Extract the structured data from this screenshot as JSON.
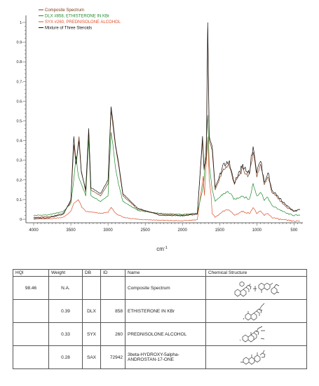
{
  "chart_data": {
    "type": "line",
    "title": "",
    "xlabel": "cm",
    "xlabel_sup": "-1",
    "ylabel": "",
    "xlim": [
      4000,
      400
    ],
    "ylim": [
      0,
      1
    ],
    "x_ticks": [
      4000,
      3500,
      3000,
      2500,
      2000,
      1500,
      1000,
      500
    ],
    "y_ticks": [
      "0-",
      "0.1-",
      "0.2-",
      "0.3-",
      "0.4-",
      "0.5-",
      "0.6-",
      "0.7-",
      "0.8-",
      "0.9-",
      "1-"
    ],
    "legend_position": "top-left",
    "series": [
      {
        "name": "Composite Spectrum",
        "color": "#7a3a1a",
        "points": [
          [
            4000,
            0.01
          ],
          [
            3800,
            0.012
          ],
          [
            3600,
            0.03
          ],
          [
            3500,
            0.09
          ],
          [
            3460,
            0.38
          ],
          [
            3430,
            0.28
          ],
          [
            3390,
            0.42
          ],
          [
            3360,
            0.25
          ],
          [
            3300,
            0.14
          ],
          [
            3260,
            0.45
          ],
          [
            3230,
            0.15
          ],
          [
            3100,
            0.12
          ],
          [
            3000,
            0.18
          ],
          [
            2960,
            0.55
          ],
          [
            2935,
            0.48
          ],
          [
            2900,
            0.37
          ],
          [
            2860,
            0.28
          ],
          [
            2800,
            0.12
          ],
          [
            2600,
            0.05
          ],
          [
            2300,
            0.025
          ],
          [
            2000,
            0.02
          ],
          [
            1800,
            0.03
          ],
          [
            1730,
            0.4
          ],
          [
            1710,
            0.25
          ],
          [
            1680,
            0.3
          ],
          [
            1660,
            0.97
          ],
          [
            1640,
            0.4
          ],
          [
            1600,
            0.35
          ],
          [
            1560,
            0.15
          ],
          [
            1450,
            0.25
          ],
          [
            1380,
            0.28
          ],
          [
            1300,
            0.18
          ],
          [
            1200,
            0.25
          ],
          [
            1100,
            0.22
          ],
          [
            1050,
            0.35
          ],
          [
            1000,
            0.22
          ],
          [
            950,
            0.28
          ],
          [
            900,
            0.18
          ],
          [
            850,
            0.22
          ],
          [
            800,
            0.14
          ],
          [
            700,
            0.1
          ],
          [
            600,
            0.06
          ],
          [
            500,
            0.04
          ],
          [
            420,
            0.05
          ]
        ]
      },
      {
        "name": "DLX #858, ETHISTERONE IN KBr",
        "color": "#1f8a2b",
        "points": [
          [
            4000,
            0.02
          ],
          [
            3800,
            0.022
          ],
          [
            3600,
            0.04
          ],
          [
            3500,
            0.08
          ],
          [
            3460,
            0.2
          ],
          [
            3430,
            0.32
          ],
          [
            3400,
            0.22
          ],
          [
            3300,
            0.12
          ],
          [
            3260,
            0.41
          ],
          [
            3230,
            0.12
          ],
          [
            3100,
            0.09
          ],
          [
            3000,
            0.12
          ],
          [
            2960,
            0.44
          ],
          [
            2935,
            0.38
          ],
          [
            2900,
            0.26
          ],
          [
            2860,
            0.18
          ],
          [
            2800,
            0.09
          ],
          [
            2600,
            0.045
          ],
          [
            2300,
            0.03
          ],
          [
            2000,
            0.025
          ],
          [
            1800,
            0.03
          ],
          [
            1730,
            0.15
          ],
          [
            1710,
            0.2
          ],
          [
            1660,
            0.53
          ],
          [
            1640,
            0.28
          ],
          [
            1600,
            0.15
          ],
          [
            1560,
            0.09
          ],
          [
            1450,
            0.13
          ],
          [
            1380,
            0.14
          ],
          [
            1300,
            0.1
          ],
          [
            1200,
            0.12
          ],
          [
            1100,
            0.1
          ],
          [
            1050,
            0.18
          ],
          [
            1000,
            0.12
          ],
          [
            950,
            0.14
          ],
          [
            900,
            0.1
          ],
          [
            850,
            0.11
          ],
          [
            800,
            0.07
          ],
          [
            700,
            0.05
          ],
          [
            600,
            0.03
          ],
          [
            500,
            0.02
          ],
          [
            420,
            0.02
          ]
        ]
      },
      {
        "name": "SYX #260, PREDNISOLONE ALCOHOL",
        "color": "#e0502a",
        "points": [
          [
            4000,
            0.0
          ],
          [
            3800,
            0.002
          ],
          [
            3600,
            0.01
          ],
          [
            3500,
            0.04
          ],
          [
            3460,
            0.08
          ],
          [
            3400,
            0.1
          ],
          [
            3350,
            0.06
          ],
          [
            3300,
            0.04
          ],
          [
            3100,
            0.03
          ],
          [
            3000,
            0.035
          ],
          [
            2960,
            0.06
          ],
          [
            2935,
            0.05
          ],
          [
            2900,
            0.03
          ],
          [
            2800,
            0.01
          ],
          [
            2600,
            0.0
          ],
          [
            2300,
            -0.005
          ],
          [
            2000,
            -0.008
          ],
          [
            1800,
            -0.002
          ],
          [
            1720,
            0.22
          ],
          [
            1705,
            0.12
          ],
          [
            1660,
            0.42
          ],
          [
            1640,
            0.2
          ],
          [
            1615,
            0.12
          ],
          [
            1600,
            0.03
          ],
          [
            1560,
            0.01
          ],
          [
            1450,
            0.04
          ],
          [
            1380,
            0.05
          ],
          [
            1300,
            0.02
          ],
          [
            1200,
            0.04
          ],
          [
            1100,
            0.03
          ],
          [
            1050,
            0.06
          ],
          [
            1000,
            0.03
          ],
          [
            950,
            0.04
          ],
          [
            900,
            0.02
          ],
          [
            850,
            0.03
          ],
          [
            800,
            0.01
          ],
          [
            700,
            0.0
          ],
          [
            600,
            -0.005
          ],
          [
            500,
            -0.01
          ],
          [
            420,
            -0.01
          ]
        ]
      },
      {
        "name": "Mixture of Three Steroids",
        "color": "#111111",
        "points": [
          [
            4000,
            0.005
          ],
          [
            3800,
            0.008
          ],
          [
            3600,
            0.025
          ],
          [
            3500,
            0.1
          ],
          [
            3460,
            0.42
          ],
          [
            3430,
            0.28
          ],
          [
            3390,
            0.4
          ],
          [
            3360,
            0.24
          ],
          [
            3300,
            0.15
          ],
          [
            3260,
            0.46
          ],
          [
            3230,
            0.16
          ],
          [
            3100,
            0.13
          ],
          [
            3000,
            0.2
          ],
          [
            2960,
            0.57
          ],
          [
            2935,
            0.5
          ],
          [
            2900,
            0.38
          ],
          [
            2860,
            0.29
          ],
          [
            2800,
            0.13
          ],
          [
            2600,
            0.055
          ],
          [
            2300,
            0.02
          ],
          [
            2000,
            0.018
          ],
          [
            1800,
            0.025
          ],
          [
            1730,
            0.42
          ],
          [
            1710,
            0.26
          ],
          [
            1680,
            0.32
          ],
          [
            1660,
            1.0
          ],
          [
            1640,
            0.42
          ],
          [
            1600,
            0.37
          ],
          [
            1560,
            0.16
          ],
          [
            1450,
            0.27
          ],
          [
            1380,
            0.3
          ],
          [
            1300,
            0.19
          ],
          [
            1200,
            0.27
          ],
          [
            1100,
            0.24
          ],
          [
            1050,
            0.38
          ],
          [
            1000,
            0.24
          ],
          [
            950,
            0.3
          ],
          [
            900,
            0.19
          ],
          [
            850,
            0.24
          ],
          [
            800,
            0.15
          ],
          [
            700,
            0.11
          ],
          [
            600,
            0.07
          ],
          [
            500,
            0.04
          ],
          [
            420,
            0.05
          ]
        ]
      }
    ]
  },
  "results_table": {
    "headers": {
      "hqi": "HQI",
      "weight": "Weight",
      "db": "DB",
      "id": "ID",
      "name": "Name",
      "structure": "Chemical Structure"
    },
    "rows": [
      {
        "hqi": "98.46",
        "weight": "N.A.",
        "db": "",
        "id": "",
        "name": "Composite Spectrum",
        "name2": ""
      },
      {
        "hqi": "",
        "weight": "0.39",
        "db": "DLX",
        "id": "858",
        "name": "ETHISTERONE IN KBr",
        "name2": ""
      },
      {
        "hqi": "",
        "weight": "0.33",
        "db": "SYX",
        "id": "260",
        "name": "PREDNISOLONE ALCOHOL",
        "name2": ""
      },
      {
        "hqi": "",
        "weight": "0.28",
        "db": "SAX",
        "id": "72942",
        "name": "3beta-HYDROXY-5alpha-",
        "name2": "ANDROSTAN-17-ONE"
      }
    ]
  }
}
